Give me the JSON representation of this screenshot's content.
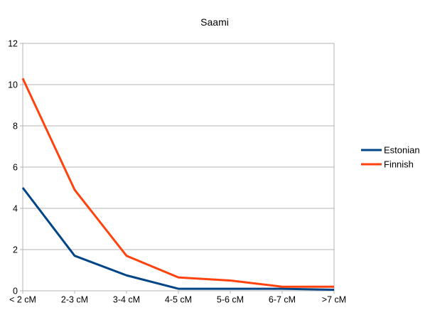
{
  "chart_data": {
    "type": "line",
    "title": "Saami",
    "categories": [
      "< 2 cM",
      "2-3 cM",
      "3-4 cM",
      "4-5 cM",
      "5-6 cM",
      "6-7 cM",
      ">7 cM"
    ],
    "series": [
      {
        "name": "Estonian",
        "color": "#004586",
        "values": [
          5.0,
          1.7,
          0.75,
          0.1,
          0.1,
          0.1,
          0.05
        ]
      },
      {
        "name": "Finnish",
        "color": "#ff420e",
        "values": [
          10.3,
          4.9,
          1.7,
          0.65,
          0.5,
          0.2,
          0.2
        ]
      }
    ],
    "xlabel": "",
    "ylabel": "",
    "ylim": [
      0,
      12
    ],
    "y_ticks": [
      0,
      2,
      4,
      6,
      8,
      10,
      12
    ],
    "grid": "horizontal-major",
    "legend_position": "right",
    "colors": {
      "grid": "#b3b3b3",
      "axis": "#b3b3b3",
      "text": "#000000",
      "background": "#ffffff"
    }
  }
}
